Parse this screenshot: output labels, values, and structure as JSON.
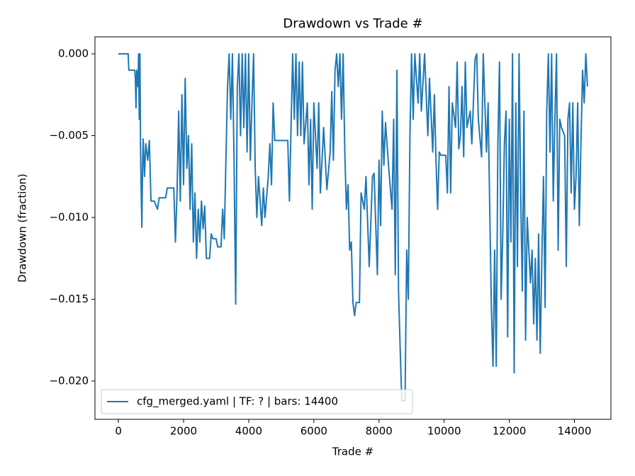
{
  "chart_data": {
    "type": "line",
    "title": "Drawdown vs Trade #",
    "xlabel": "Trade #",
    "ylabel": "Drawdown (fraction)",
    "xlim": [
      -720,
      15120
    ],
    "ylim": [
      -0.02234,
      0.00104
    ],
    "xticks": [
      0,
      2000,
      4000,
      6000,
      8000,
      10000,
      12000,
      14000
    ],
    "yticks": [
      {
        "value": 0,
        "label": "0.000"
      },
      {
        "value": -0.005,
        "label": "−0.005"
      },
      {
        "value": -0.01,
        "label": "−0.010"
      },
      {
        "value": -0.015,
        "label": "−0.015"
      },
      {
        "value": -0.02,
        "label": "−0.020"
      }
    ],
    "legend": "lower left",
    "grid": false,
    "series": [
      {
        "name": "cfg_merged.yaml | TF: ? | bars: 14400",
        "color": "#1f77b4",
        "x": [
          0,
          300,
          320,
          500,
          520,
          540,
          560,
          600,
          620,
          640,
          660,
          680,
          700,
          720,
          740,
          760,
          800,
          840,
          900,
          950,
          1000,
          1100,
          1200,
          1250,
          1450,
          1500,
          1700,
          1750,
          1800,
          1850,
          1900,
          1950,
          2000,
          2050,
          2100,
          2150,
          2200,
          2250,
          2300,
          2350,
          2400,
          2450,
          2500,
          2550,
          2600,
          2650,
          2700,
          2800,
          2850,
          2900,
          3000,
          3050,
          3150,
          3200,
          3250,
          3300,
          3350,
          3400,
          3450,
          3500,
          3550,
          3600,
          3650,
          3700,
          3750,
          3800,
          3850,
          3900,
          3950,
          4000,
          4050,
          4100,
          4150,
          4200,
          4250,
          4300,
          4400,
          4450,
          4500,
          4600,
          4650,
          4700,
          4750,
          4800,
          5200,
          5250,
          5300,
          5350,
          5400,
          5450,
          5500,
          5550,
          5600,
          5650,
          5700,
          5800,
          5850,
          5900,
          5950,
          6000,
          6100,
          6150,
          6200,
          6300,
          6400,
          6500,
          6550,
          6600,
          6650,
          6700,
          6750,
          6800,
          6850,
          6900,
          6950,
          7000,
          7050,
          7100,
          7150,
          7200,
          7250,
          7300,
          7400,
          7450,
          7550,
          7600,
          7700,
          7800,
          7850,
          7950,
          8000,
          8050,
          8100,
          8150,
          8200,
          8300,
          8400,
          8450,
          8500,
          8550,
          8600,
          8650,
          8700,
          8800,
          8850,
          8900,
          8950,
          9000,
          9050,
          9100,
          9200,
          9250,
          9300,
          9400,
          9500,
          9550,
          9650,
          9700,
          9750,
          9800,
          9850,
          9900,
          10050,
          10100,
          10150,
          10200,
          10250,
          10350,
          10400,
          10450,
          10500,
          10550,
          10600,
          10650,
          10700,
          10800,
          10850,
          10950,
          11000,
          11050,
          11150,
          11200,
          11300,
          11350,
          11400,
          11450,
          11500,
          11550,
          11600,
          11650,
          11700,
          11750,
          11800,
          11850,
          11900,
          11950,
          12000,
          12050,
          12100,
          12150,
          12200,
          12250,
          12300,
          12350,
          12400,
          12450,
          12500,
          12550,
          12650,
          12700,
          12750,
          12800,
          12850,
          12900,
          12950,
          13000,
          13050,
          13100,
          13150,
          13200,
          13250,
          13300,
          13350,
          13400,
          13450,
          13500,
          13550,
          13600,
          13700,
          13750,
          13800,
          13850,
          13900,
          13950,
          14000,
          14050,
          14100,
          14150,
          14200,
          14250,
          14300,
          14350,
          14400
        ],
        "values": [
          0,
          0,
          -0.001,
          -0.001,
          -0.0015,
          -0.0033,
          -0.001,
          -0.002,
          0,
          -0.004,
          0,
          -0.0058,
          -0.0085,
          -0.0106,
          -0.007,
          -0.0052,
          -0.0075,
          -0.0055,
          -0.0065,
          -0.0053,
          -0.009,
          -0.009,
          -0.0095,
          -0.0088,
          -0.0088,
          -0.0082,
          -0.0082,
          -0.0115,
          -0.0085,
          -0.0035,
          -0.009,
          -0.0025,
          -0.008,
          -0.0015,
          -0.007,
          -0.005,
          -0.0095,
          -0.0055,
          -0.0115,
          -0.0085,
          -0.0125,
          -0.0095,
          -0.0115,
          -0.009,
          -0.0107,
          -0.0093,
          -0.0125,
          -0.0125,
          -0.011,
          -0.0113,
          -0.0113,
          -0.0118,
          -0.0118,
          -0.0095,
          -0.0113,
          -0.0065,
          -0.002,
          0,
          -0.004,
          0,
          -0.0065,
          -0.0153,
          -0.002,
          0,
          -0.005,
          0,
          -0.0045,
          0,
          -0.006,
          0,
          -0.0065,
          -0.003,
          0,
          -0.007,
          -0.01,
          -0.0075,
          -0.0105,
          -0.0082,
          -0.01,
          -0.0075,
          -0.0055,
          -0.008,
          -0.003,
          -0.0053,
          -0.0053,
          -0.009,
          -0.0045,
          0,
          -0.004,
          0,
          -0.005,
          -0.0005,
          -0.005,
          -0.0005,
          -0.0055,
          -0.003,
          -0.008,
          -0.004,
          -0.0095,
          -0.003,
          -0.007,
          -0.003,
          -0.0085,
          -0.0045,
          -0.0083,
          -0.006,
          -0.0023,
          -0.0065,
          -0.001,
          0,
          -0.002,
          0,
          -0.004,
          0,
          -0.006,
          -0.0095,
          -0.008,
          -0.012,
          -0.0115,
          -0.0152,
          -0.016,
          -0.0152,
          -0.0152,
          -0.0085,
          -0.0095,
          -0.0075,
          -0.013,
          -0.0075,
          -0.0073,
          -0.0135,
          -0.0065,
          -0.0105,
          -0.0035,
          -0.0068,
          -0.0042,
          -0.007,
          -0.0095,
          -0.004,
          -0.0135,
          -0.001,
          -0.0145,
          -0.018,
          -0.0212,
          -0.0212,
          -0.012,
          -0.015,
          -0.005,
          0,
          -0.004,
          0,
          -0.003,
          0,
          -0.0035,
          0,
          -0.005,
          -0.0015,
          -0.006,
          -0.0025,
          -0.0065,
          -0.0095,
          -0.006,
          -0.0062,
          -0.0062,
          -0.0085,
          -0.002,
          -0.0085,
          -0.003,
          -0.0045,
          -0.0005,
          -0.0058,
          -0.005,
          -0.002,
          -0.0063,
          -0.0005,
          -0.0045,
          -0.0035,
          -0.0055,
          -0.0003,
          0,
          -0.004,
          -0.0063,
          0,
          -0.006,
          -0.003,
          -0.0095,
          -0.0155,
          -0.0191,
          -0.012,
          -0.0191,
          -0.0055,
          -0.0005,
          -0.015,
          -0.011,
          -0.0055,
          -0.0035,
          -0.0173,
          -0.004,
          -0.0115,
          0,
          -0.0195,
          -0.003,
          -0.013,
          0,
          -0.0085,
          -0.0145,
          -0.0035,
          -0.0175,
          -0.01,
          -0.014,
          -0.012,
          -0.0165,
          -0.0125,
          -0.0175,
          -0.011,
          -0.0183,
          -0.0125,
          -0.0075,
          -0.0155,
          -0.0035,
          0,
          -0.006,
          0,
          -0.009,
          -0.004,
          0,
          -0.012,
          -0.004,
          -0.0045,
          -0.005,
          -0.013,
          -0.004,
          -0.003,
          -0.0085,
          -0.003,
          -0.0095,
          -0.0075,
          -0.003,
          -0.0105,
          -0.0055,
          -0.001,
          -0.003,
          0,
          -0.002
        ]
      }
    ]
  }
}
